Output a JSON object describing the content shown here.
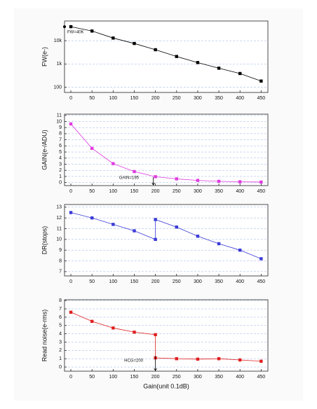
{
  "chart_data": [
    {
      "type": "line",
      "y_label": "FW(e-)",
      "yscale": "log",
      "color": "#000000",
      "marker": "square",
      "grid": true,
      "annotation": "FW=40K",
      "x": [
        0,
        50,
        100,
        150,
        200,
        250,
        300,
        350,
        400,
        450
      ],
      "values": [
        40000,
        26000,
        13000,
        7600,
        4100,
        2100,
        1150,
        660,
        390,
        185
      ],
      "xlim": [
        -15,
        466
      ],
      "xticks": [
        0,
        50,
        100,
        150,
        200,
        250,
        300,
        350,
        400,
        450
      ],
      "ylim": [
        60,
        70000
      ],
      "yticks": [
        100,
        {
          "value": 1000,
          "label": "1k"
        },
        {
          "value": 10000,
          "label": "10k"
        }
      ]
    },
    {
      "type": "line",
      "y_label": "GAIN(e-/ADU)",
      "color": "#e03ce0",
      "marker": "square",
      "grid": true,
      "annotation": "GAIN=195",
      "x": [
        0,
        50,
        100,
        150,
        200,
        250,
        300,
        350,
        400,
        450
      ],
      "values": [
        9.6,
        5.6,
        3.1,
        1.8,
        0.95,
        0.6,
        0.35,
        0.2,
        0.12,
        0.08
      ],
      "xlim": [
        -15,
        466
      ],
      "xticks": [
        0,
        50,
        100,
        150,
        200,
        250,
        300,
        350,
        400,
        450
      ],
      "ylim": [
        -0.5,
        11.2
      ],
      "yticks": [
        0,
        1,
        2,
        3,
        4,
        5,
        6,
        7,
        8,
        9,
        10,
        11
      ]
    },
    {
      "type": "line",
      "y_label": "DR(stops)",
      "color": "#3a3ad8",
      "marker": "square",
      "grid": true,
      "x": [
        0,
        50,
        100,
        150,
        200,
        200,
        250,
        300,
        350,
        400,
        450
      ],
      "values": [
        12.5,
        12.0,
        11.4,
        10.8,
        10.0,
        11.85,
        11.15,
        10.3,
        9.6,
        9.0,
        8.2
      ],
      "xlim": [
        -15,
        466
      ],
      "xticks": [
        0,
        50,
        100,
        150,
        200,
        250,
        300,
        350,
        400,
        450
      ],
      "ylim": [
        6.6,
        13.25
      ],
      "yticks": [
        7,
        8,
        9,
        10,
        11,
        12,
        13
      ]
    },
    {
      "type": "line",
      "y_label": "Read noise(e-rms)",
      "x_label": "Gain(unit 0.1dB)",
      "color": "#e02020",
      "marker": "square",
      "grid": true,
      "annotation": "HCG=200",
      "x": [
        0,
        50,
        100,
        150,
        200,
        200,
        250,
        300,
        350,
        400,
        450
      ],
      "values": [
        6.6,
        5.5,
        4.7,
        4.2,
        3.9,
        1.1,
        1.0,
        0.95,
        1.0,
        0.85,
        0.7
      ],
      "xlim": [
        -15,
        466
      ],
      "xticks": [
        0,
        50,
        100,
        150,
        200,
        250,
        300,
        350,
        400,
        450
      ],
      "ylim": [
        -0.5,
        8.1
      ],
      "yticks": [
        0,
        1,
        2,
        3,
        4,
        5,
        6,
        7,
        8
      ]
    }
  ]
}
